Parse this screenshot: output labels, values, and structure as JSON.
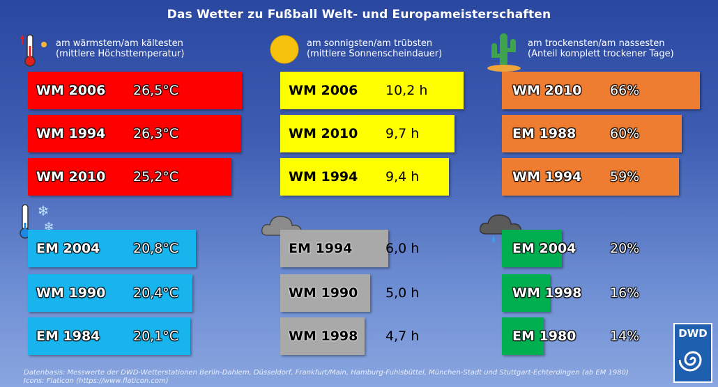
{
  "title": "Das Wetter zu Fußball Welt- und Europameisterschaften",
  "headers": {
    "temp": {
      "line1": "am wärmstem/am kältesten",
      "line2": "(mittlere Höchsttemperatur)"
    },
    "sun": {
      "line1": "am sonnigsten/am trübsten",
      "line2": "(mittlere Sonnenscheindauer)"
    },
    "dry": {
      "line1": "am trockensten/am nassesten",
      "line2": "(Anteil komplett trockener Tage)"
    }
  },
  "footer": {
    "line1": "Datenbasis: Messwerte der DWD-Wetterstationen Berlin-Dahlem, Düsseldorf, Frankfurt/Main, Hamburg-Fuhlsbüttel, München-Stadt und Stuttgart-Echterdingen (ab EM 1980)",
    "line2": "Icons: Flaticon (https://www.flaticon.com)"
  },
  "logo_text": "DWD",
  "colors": {
    "warm": "#ff0000",
    "cold": "#18b4ee",
    "sunny": "#ffff00",
    "gloomy": "#a9a9a9",
    "dry": "#ee7d31",
    "wet": "#00b050"
  },
  "chart_data": [
    {
      "type": "bar",
      "categories": [
        "WM 2006",
        "WM 1994",
        "WM 2010"
      ],
      "values": [
        26.5,
        26.3,
        25.2
      ],
      "labels": [
        "26,5°C",
        "26,3°C",
        "25,2°C"
      ],
      "unit": "°C"
    },
    {
      "type": "bar",
      "categories": [
        "EM 2004",
        "WM 1990",
        "EM 1984"
      ],
      "values": [
        20.8,
        20.4,
        20.1
      ],
      "labels": [
        "20,8°C",
        "20,4°C",
        "20,1°C"
      ],
      "unit": "°C"
    },
    {
      "type": "bar",
      "categories": [
        "WM 2006",
        "WM 2010",
        "WM 1994"
      ],
      "values": [
        10.2,
        9.7,
        9.4
      ],
      "labels": [
        "10,2 h",
        "9,7 h",
        "9,4 h"
      ],
      "unit": "h"
    },
    {
      "type": "bar",
      "categories": [
        "EM 1994",
        "WM 1990",
        "WM 1998"
      ],
      "values": [
        6.0,
        5.0,
        4.7
      ],
      "labels": [
        "6,0 h",
        "5,0 h",
        "4,7 h"
      ],
      "unit": "h"
    },
    {
      "type": "bar",
      "categories": [
        "WM 2010",
        "EM 1988",
        "WM 1994"
      ],
      "values": [
        66,
        60,
        59
      ],
      "labels": [
        "66%",
        "60%",
        "59%"
      ],
      "unit": "%"
    },
    {
      "type": "bar",
      "categories": [
        "EM 2004",
        "WM 1998",
        "EM 1980"
      ],
      "values": [
        20,
        16,
        14
      ],
      "labels": [
        "20%",
        "16%",
        "14%"
      ],
      "unit": "%"
    }
  ]
}
